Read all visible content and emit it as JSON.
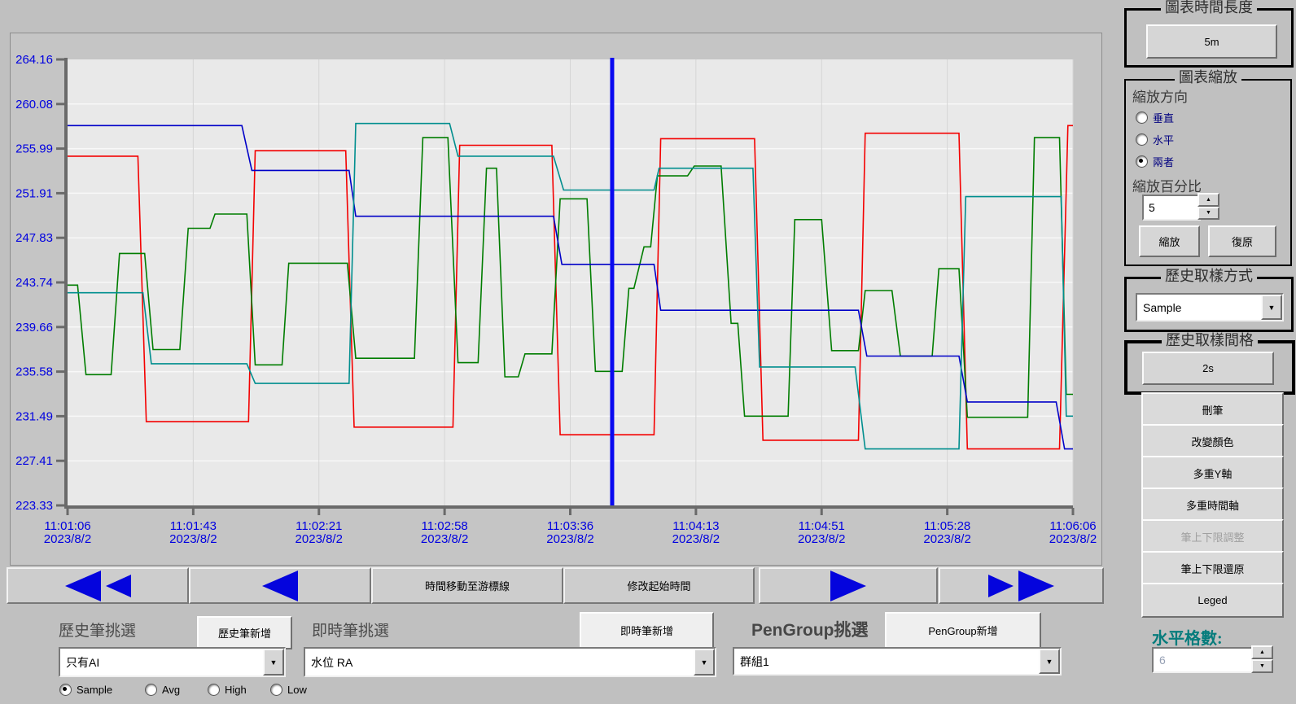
{
  "chart_data": {
    "type": "line",
    "title": "",
    "x_axis": {
      "span_seconds": 300,
      "ticks": [
        {
          "time": "11:01:06",
          "date": "2023/8/2"
        },
        {
          "time": "11:01:43",
          "date": "2023/8/2"
        },
        {
          "time": "11:02:21",
          "date": "2023/8/2"
        },
        {
          "time": "11:02:58",
          "date": "2023/8/2"
        },
        {
          "time": "11:03:36",
          "date": "2023/8/2"
        },
        {
          "time": "11:04:13",
          "date": "2023/8/2"
        },
        {
          "time": "11:04:51",
          "date": "2023/8/2"
        },
        {
          "time": "11:05:28",
          "date": "2023/8/2"
        },
        {
          "time": "11:06:06",
          "date": "2023/8/2"
        }
      ]
    },
    "y_axis": {
      "min": 223.33,
      "max": 264.16,
      "tick_labels": [
        "264.16",
        "260.08",
        "255.99",
        "251.91",
        "247.83",
        "243.74",
        "239.66",
        "235.58",
        "231.49",
        "227.41",
        "223.33"
      ]
    },
    "grid": true,
    "legend": "none",
    "cursor": {
      "time_s": 162.5
    },
    "colors": {
      "labels": "#0000e0",
      "plot_bg": "#e9e9e9",
      "grid_h": "#f8f8f8",
      "grid_v": "#d5d5d5",
      "axis": "#6a6a6a",
      "cursor": "#0a0af0"
    },
    "series": [
      {
        "name": "red-pen",
        "color": "#f40000",
        "points": [
          [
            0,
            255.3
          ],
          [
            21,
            255.3
          ],
          [
            23.5,
            231.0
          ],
          [
            54,
            231.0
          ],
          [
            56,
            255.8
          ],
          [
            83,
            255.8
          ],
          [
            85.5,
            230.5
          ],
          [
            115,
            230.5
          ],
          [
            117,
            256.3
          ],
          [
            144.5,
            256.3
          ],
          [
            147,
            229.8
          ],
          [
            175,
            229.8
          ],
          [
            177,
            256.9
          ],
          [
            205,
            256.9
          ],
          [
            207.5,
            229.3
          ],
          [
            236,
            229.3
          ],
          [
            238,
            257.4
          ],
          [
            266,
            257.4
          ],
          [
            268.5,
            228.5
          ],
          [
            296,
            228.5
          ],
          [
            298.5,
            258.1
          ],
          [
            300,
            258.1
          ]
        ]
      },
      {
        "name": "green-pen",
        "color": "#007d00",
        "points": [
          [
            0,
            243.5
          ],
          [
            3,
            243.5
          ],
          [
            5.5,
            235.3
          ],
          [
            13,
            235.3
          ],
          [
            15.5,
            246.4
          ],
          [
            23,
            246.4
          ],
          [
            25.5,
            237.6
          ],
          [
            33.5,
            237.6
          ],
          [
            36,
            248.7
          ],
          [
            42.5,
            248.7
          ],
          [
            44,
            250.0
          ],
          [
            53.5,
            250.0
          ],
          [
            56,
            236.2
          ],
          [
            64,
            236.2
          ],
          [
            66,
            245.5
          ],
          [
            83.5,
            245.5
          ],
          [
            86,
            236.8
          ],
          [
            103.5,
            236.8
          ],
          [
            106,
            257.0
          ],
          [
            113.5,
            257.0
          ],
          [
            116.5,
            236.4
          ],
          [
            122.5,
            236.4
          ],
          [
            125,
            254.2
          ],
          [
            128,
            254.2
          ],
          [
            130.5,
            235.1
          ],
          [
            134.5,
            235.1
          ],
          [
            136.5,
            237.2
          ],
          [
            144.5,
            237.2
          ],
          [
            147,
            251.4
          ],
          [
            155,
            251.4
          ],
          [
            157.5,
            235.6
          ],
          [
            165.5,
            235.6
          ],
          [
            167.5,
            243.2
          ],
          [
            169,
            243.2
          ],
          [
            172,
            247.0
          ],
          [
            174,
            247.0
          ],
          [
            176,
            253.5
          ],
          [
            185,
            253.5
          ],
          [
            187,
            254.4
          ],
          [
            195,
            254.4
          ],
          [
            198,
            240.0
          ],
          [
            200,
            240.0
          ],
          [
            202,
            231.5
          ],
          [
            215,
            231.5
          ],
          [
            217,
            249.5
          ],
          [
            225,
            249.5
          ],
          [
            228,
            237.5
          ],
          [
            236,
            237.5
          ],
          [
            238,
            243.0
          ],
          [
            246,
            243.0
          ],
          [
            248.5,
            237.0
          ],
          [
            258,
            237.0
          ],
          [
            260,
            245.0
          ],
          [
            266,
            245.0
          ],
          [
            268.5,
            231.4
          ],
          [
            286.5,
            231.4
          ],
          [
            288.5,
            257.0
          ],
          [
            296,
            257.0
          ],
          [
            298,
            233.5
          ],
          [
            300,
            233.5
          ]
        ]
      },
      {
        "name": "blue-pen",
        "color": "#0000c8",
        "points": [
          [
            0,
            258.1
          ],
          [
            52,
            258.1
          ],
          [
            55,
            254.0
          ],
          [
            84,
            254.0
          ],
          [
            86,
            249.8
          ],
          [
            145,
            249.8
          ],
          [
            147.5,
            245.4
          ],
          [
            175,
            245.4
          ],
          [
            177,
            241.2
          ],
          [
            236,
            241.2
          ],
          [
            238.5,
            237.0
          ],
          [
            266,
            237.0
          ],
          [
            268.5,
            232.8
          ],
          [
            295,
            232.8
          ],
          [
            297.5,
            228.5
          ],
          [
            300,
            228.5
          ]
        ]
      },
      {
        "name": "teal-pen",
        "color": "#008e8e",
        "points": [
          [
            0,
            242.8
          ],
          [
            22.5,
            242.8
          ],
          [
            25,
            236.3
          ],
          [
            53.5,
            236.3
          ],
          [
            56,
            234.5
          ],
          [
            84,
            234.5
          ],
          [
            86,
            258.3
          ],
          [
            114,
            258.3
          ],
          [
            116.5,
            255.3
          ],
          [
            145,
            255.3
          ],
          [
            148,
            252.2
          ],
          [
            175,
            252.2
          ],
          [
            176.5,
            254.2
          ],
          [
            204.5,
            254.2
          ],
          [
            206.5,
            236.0
          ],
          [
            235,
            236.0
          ],
          [
            238,
            228.5
          ],
          [
            266,
            228.5
          ],
          [
            268,
            251.6
          ],
          [
            296.5,
            251.6
          ],
          [
            298,
            231.5
          ],
          [
            300,
            231.5
          ]
        ]
      }
    ]
  },
  "right_panel": {
    "time_length_group": {
      "title": "圖表時間長度",
      "button": "5m"
    },
    "zoom_group": {
      "title": "圖表縮放",
      "direction_label": "縮放方向",
      "radios": [
        {
          "label": "垂直",
          "selected": false
        },
        {
          "label": "水平",
          "selected": false
        },
        {
          "label": "兩者",
          "selected": true
        }
      ],
      "percent_label": "縮放百分比",
      "percent_value": "5",
      "zoom_button": "縮放",
      "restore_button": "復原"
    },
    "sample_method_group": {
      "title": "歷史取樣方式",
      "value": "Sample"
    },
    "sample_interval_group": {
      "title": "歷史取樣間格",
      "button": "2s"
    },
    "buttons": [
      {
        "label": "刪筆",
        "enabled": true
      },
      {
        "label": "改變顏色",
        "enabled": true
      },
      {
        "label": "多重Y軸",
        "enabled": true
      },
      {
        "label": "多重時間軸",
        "enabled": true
      },
      {
        "label": "筆上下限調整",
        "enabled": false
      },
      {
        "label": "筆上下限還原",
        "enabled": true
      },
      {
        "label": "Leged",
        "enabled": true
      }
    ],
    "h_grid": {
      "label": "水平格數:",
      "value": "6",
      "label_color": "#067c7c"
    }
  },
  "nav": {
    "move_to_cursor": "時間移動至游標線",
    "modify_start_time": "修改起始時間"
  },
  "pens": {
    "history": {
      "label": "歷史筆挑選",
      "add_button": "歷史筆新增",
      "value": "只有AI"
    },
    "realtime": {
      "label": "即時筆挑選",
      "add_button": "即時筆新增",
      "value": "水位 RA"
    },
    "pengroup": {
      "label": "PenGroup挑選",
      "add_button": "PenGroup新增",
      "value": "群組1"
    },
    "stat_radios": [
      {
        "label": "Sample",
        "selected": true
      },
      {
        "label": "Avg",
        "selected": false
      },
      {
        "label": "High",
        "selected": false
      },
      {
        "label": "Low",
        "selected": false
      }
    ]
  }
}
